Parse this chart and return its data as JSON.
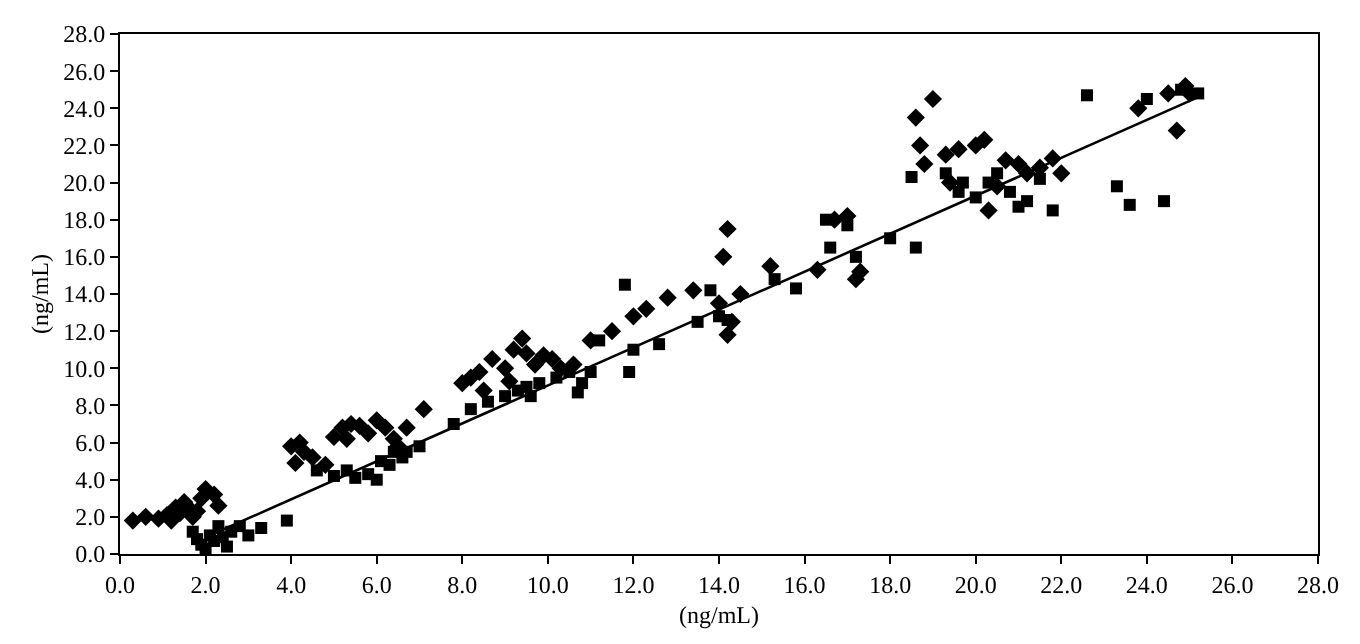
{
  "chart_data": {
    "type": "scatter",
    "xlabel": "(ng/mL)",
    "ylabel": "(ng/mL)",
    "xlim": [
      0,
      28
    ],
    "ylim": [
      0,
      28
    ],
    "xticks": [
      {
        "value": 0,
        "label": "0.0"
      },
      {
        "value": 2,
        "label": "2.0"
      },
      {
        "value": 4,
        "label": "4.0"
      },
      {
        "value": 6,
        "label": "6.0"
      },
      {
        "value": 8,
        "label": "8.0"
      },
      {
        "value": 10,
        "label": "10.0"
      },
      {
        "value": 12,
        "label": "12.0"
      },
      {
        "value": 14,
        "label": "14.0"
      },
      {
        "value": 16,
        "label": "16.0"
      },
      {
        "value": 18,
        "label": "18.0"
      },
      {
        "value": 20,
        "label": "20.0"
      },
      {
        "value": 22,
        "label": "22.0"
      },
      {
        "value": 24,
        "label": "24.0"
      },
      {
        "value": 26,
        "label": "26.0"
      },
      {
        "value": 28,
        "label": "28.0"
      }
    ],
    "yticks": [
      {
        "value": 0,
        "label": "0.0"
      },
      {
        "value": 2,
        "label": "2.0"
      },
      {
        "value": 4,
        "label": "4.0"
      },
      {
        "value": 6,
        "label": "6.0"
      },
      {
        "value": 8,
        "label": "8.0"
      },
      {
        "value": 10,
        "label": "10.0"
      },
      {
        "value": 12,
        "label": "12.0"
      },
      {
        "value": 14,
        "label": "14.0"
      },
      {
        "value": 16,
        "label": "16.0"
      },
      {
        "value": 18,
        "label": "18.0"
      },
      {
        "value": 20,
        "label": "20.0"
      },
      {
        "value": 22,
        "label": "22.0"
      },
      {
        "value": 24,
        "label": "24.0"
      },
      {
        "value": 26,
        "label": "26.0"
      },
      {
        "value": 28,
        "label": "28.0"
      }
    ],
    "grid": false,
    "series": [
      {
        "color": "#000000",
        "marker": "diamond",
        "x": [
          0.3,
          0.6,
          0.9,
          1.1,
          1.3,
          1.4,
          1.5,
          1.6,
          1.8,
          1.9,
          2.0,
          2.2,
          2.3,
          1.7,
          1.2,
          4.0,
          4.2,
          4.3,
          4.5,
          4.1,
          4.8,
          5.0,
          5.2,
          5.4,
          5.6,
          5.8,
          5.3,
          6.0,
          6.2,
          6.4,
          6.7,
          7.1,
          6.5,
          8.0,
          8.2,
          8.4,
          8.7,
          9.0,
          9.2,
          9.4,
          9.5,
          9.7,
          9.9,
          10.1,
          10.3,
          8.5,
          9.1,
          10.6,
          11.0,
          11.5,
          12.0,
          12.3,
          12.8,
          13.4,
          14.0,
          14.2,
          14.1,
          14.3,
          14.2,
          14.5,
          16.7,
          17.0,
          17.3,
          17.2,
          15.2,
          16.3,
          18.7,
          18.8,
          18.6,
          19.0,
          19.3,
          19.4,
          19.6,
          20.0,
          20.2,
          20.3,
          20.5,
          20.7,
          21.0,
          21.2,
          21.5,
          21.8,
          22.0,
          23.8,
          24.5,
          24.7,
          24.9,
          25.0
        ],
        "values": [
          1.8,
          2.0,
          1.9,
          2.1,
          2.5,
          2.2,
          2.8,
          2.5,
          2.3,
          3.0,
          3.5,
          3.2,
          2.6,
          2.0,
          1.8,
          5.8,
          6.0,
          5.5,
          5.2,
          4.9,
          4.8,
          6.3,
          6.8,
          7.0,
          6.9,
          6.5,
          6.2,
          7.2,
          6.8,
          6.2,
          6.8,
          7.8,
          5.8,
          9.2,
          9.5,
          9.8,
          10.5,
          10.0,
          11.0,
          11.6,
          10.8,
          10.2,
          10.7,
          10.5,
          10.0,
          8.8,
          9.3,
          10.2,
          11.5,
          12.0,
          12.8,
          13.2,
          13.8,
          14.2,
          13.5,
          17.5,
          16.0,
          12.5,
          11.8,
          14.0,
          18.0,
          18.2,
          15.2,
          14.8,
          15.5,
          15.3,
          22.0,
          21.0,
          23.5,
          24.5,
          21.5,
          20.0,
          21.8,
          22.0,
          22.3,
          18.5,
          19.8,
          21.2,
          21.0,
          20.5,
          20.8,
          21.3,
          20.5,
          24.0,
          24.8,
          22.8,
          25.2,
          24.8
        ]
      },
      {
        "color": "#000000",
        "marker": "square",
        "x": [
          1.8,
          1.9,
          2.0,
          2.1,
          2.2,
          2.3,
          2.4,
          2.6,
          2.8,
          3.0,
          3.3,
          3.9,
          1.7,
          2.5,
          5.0,
          5.3,
          5.5,
          5.8,
          6.0,
          6.3,
          6.1,
          6.4,
          6.7,
          7.0,
          6.6,
          4.6,
          7.8,
          8.2,
          8.6,
          9.0,
          9.3,
          9.5,
          9.8,
          10.2,
          10.5,
          10.8,
          11.0,
          9.6,
          10.7,
          11.2,
          11.8,
          12.0,
          11.9,
          12.6,
          13.5,
          14.0,
          14.2,
          13.8,
          15.3,
          15.8,
          16.5,
          16.6,
          17.2,
          17.0,
          18.0,
          18.5,
          18.6,
          19.3,
          19.6,
          19.7,
          20.0,
          20.3,
          20.5,
          20.8,
          21.0,
          21.2,
          21.5,
          21.8,
          22.6,
          23.3,
          23.6,
          24.4,
          24.0,
          24.8,
          25.2
        ],
        "values": [
          0.8,
          0.5,
          0.3,
          1.0,
          0.7,
          1.5,
          0.9,
          1.2,
          1.5,
          1.0,
          1.4,
          1.8,
          1.2,
          0.4,
          4.2,
          4.5,
          4.1,
          4.3,
          4.0,
          4.8,
          5.0,
          5.5,
          5.5,
          5.8,
          5.2,
          4.5,
          7.0,
          7.8,
          8.2,
          8.5,
          8.8,
          9.0,
          9.2,
          9.5,
          9.8,
          9.2,
          9.8,
          8.5,
          8.7,
          11.5,
          14.5,
          11.0,
          9.8,
          11.3,
          12.5,
          12.8,
          12.6,
          14.2,
          14.8,
          14.3,
          18.0,
          16.5,
          16.0,
          17.7,
          17.0,
          20.3,
          16.5,
          20.5,
          19.5,
          20.0,
          19.2,
          20.0,
          20.5,
          19.5,
          18.7,
          19.0,
          20.2,
          18.5,
          24.7,
          19.8,
          18.8,
          19.0,
          24.5,
          25.0,
          24.8
        ]
      },
      {
        "type": "line",
        "color": "#000000",
        "marker": "none",
        "line_style": "solid",
        "x": [
          2.0,
          25.2
        ],
        "values": [
          0.9,
          24.6
        ]
      }
    ]
  }
}
